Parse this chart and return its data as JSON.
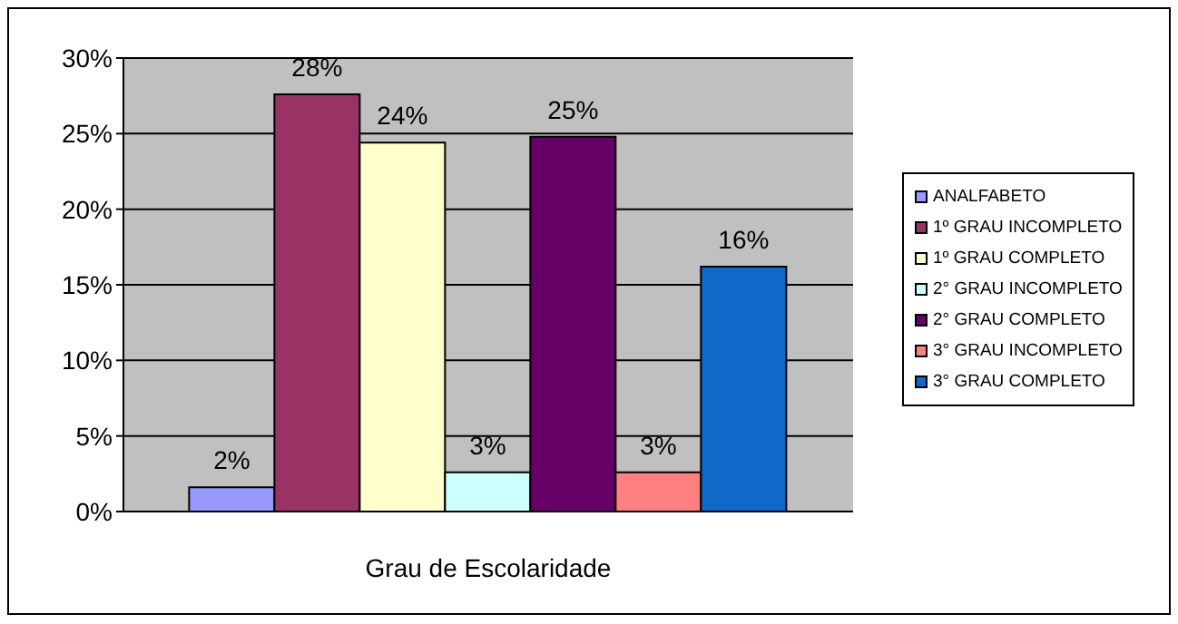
{
  "chart_data": {
    "type": "bar",
    "xlabel": "Grau de Escolaridade",
    "categories": [
      null
    ],
    "series": [
      {
        "name": "ANALFABETO",
        "color": "#9999ff",
        "values": [
          1.6
        ],
        "value_labels": [
          "2%"
        ]
      },
      {
        "name": "1º GRAU INCOMPLETO",
        "color": "#993366",
        "values": [
          27.6
        ],
        "value_labels": [
          "28%"
        ]
      },
      {
        "name": "1º GRAU COMPLETO",
        "color": "#ffffcc",
        "values": [
          24.4
        ],
        "value_labels": [
          "24%"
        ]
      },
      {
        "name": "2° GRAU INCOMPLETO",
        "color": "#ccffff",
        "values": [
          2.6
        ],
        "value_labels": [
          "3%"
        ]
      },
      {
        "name": "2° GRAU COMPLETO",
        "color": "#660066",
        "values": [
          24.8
        ],
        "value_labels": [
          "25%"
        ]
      },
      {
        "name": "3° GRAU INCOMPLETO",
        "color": "#ff8080",
        "values": [
          2.6
        ],
        "value_labels": [
          "3%"
        ]
      },
      {
        "name": "3° GRAU COMPLETO",
        "color": "#1068c8",
        "values": [
          16.2
        ],
        "value_labels": [
          "16%"
        ]
      }
    ],
    "ylim": [
      0,
      30
    ],
    "yticks": [
      {
        "value": 0,
        "label": "0%"
      },
      {
        "value": 5,
        "label": "5%"
      },
      {
        "value": 10,
        "label": "10%"
      },
      {
        "value": 15,
        "label": "15%"
      },
      {
        "value": 20,
        "label": "20%"
      },
      {
        "value": 25,
        "label": "25%"
      },
      {
        "value": 30,
        "label": "30%"
      }
    ],
    "grid": "y",
    "legend": "right"
  }
}
